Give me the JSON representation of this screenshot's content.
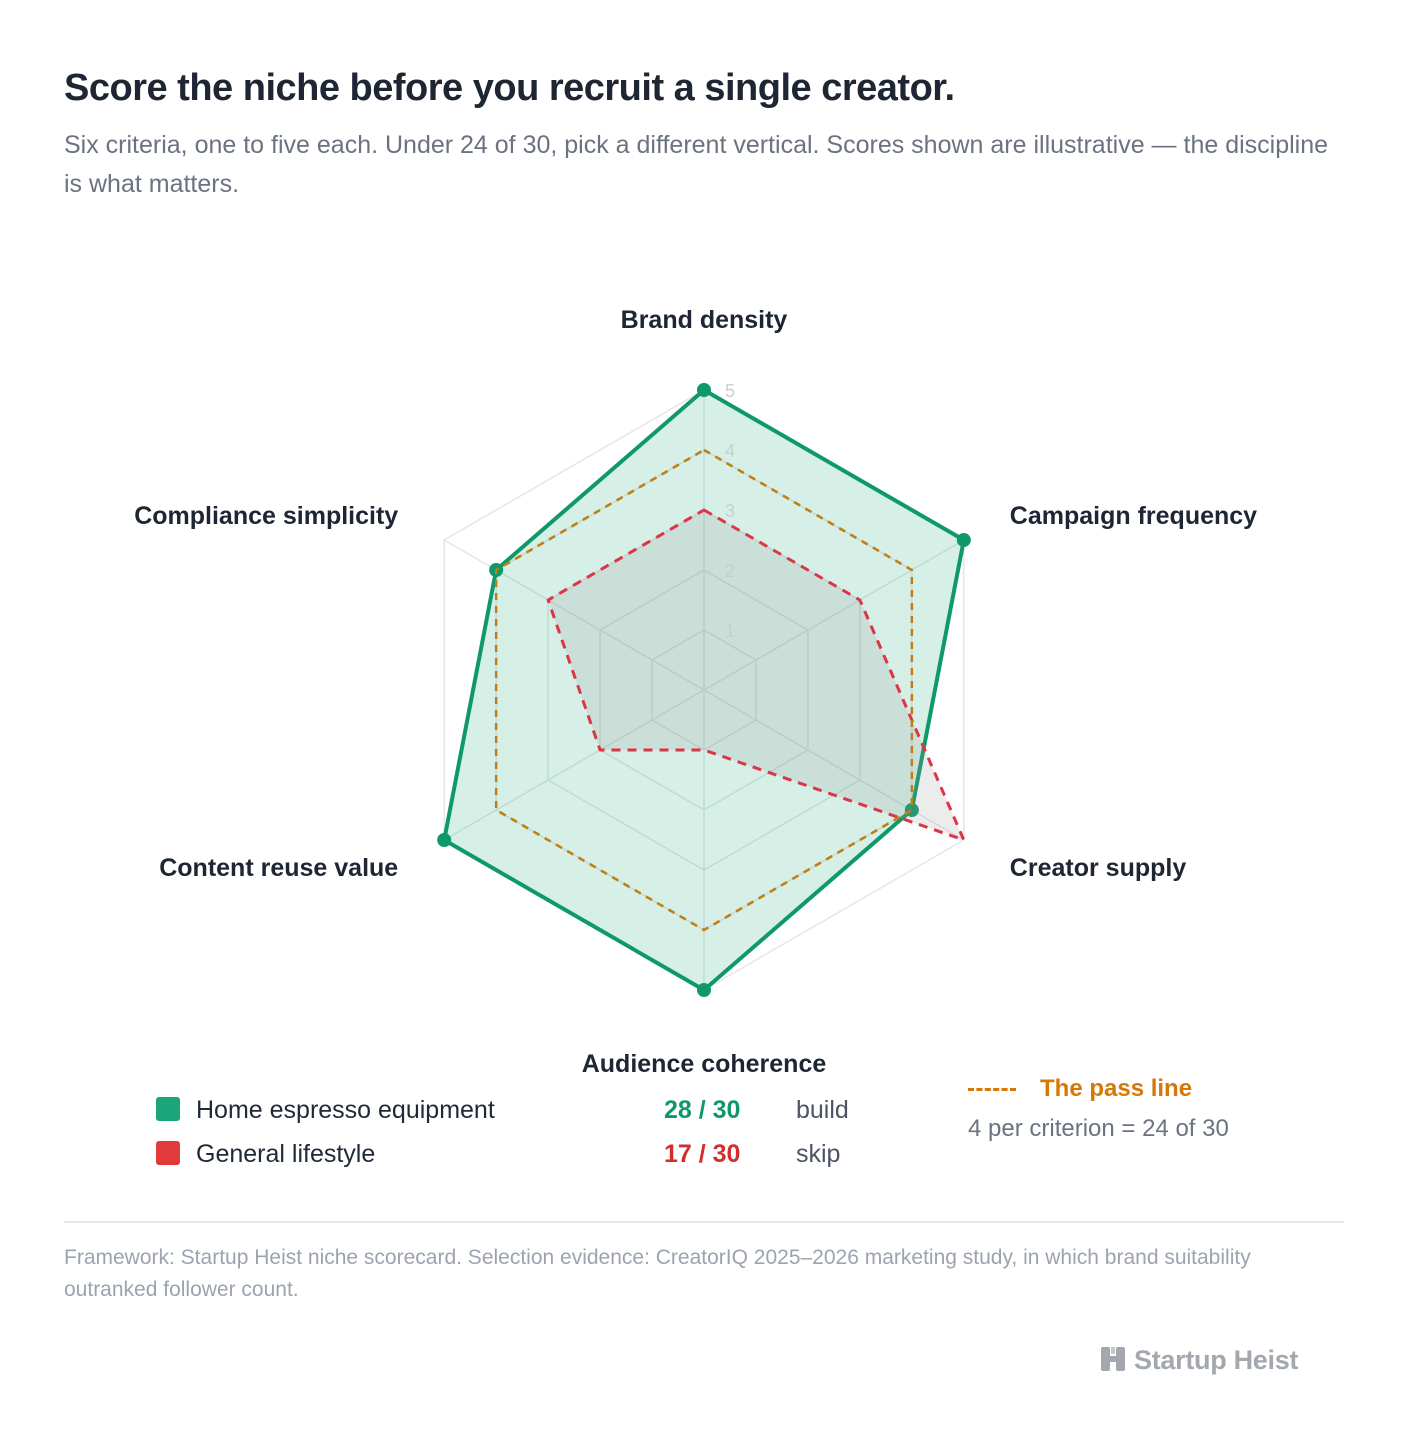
{
  "header": {
    "title": "Score the niche before you recruit a single creator.",
    "subtitle": "Six criteria, one to five each. Under 24 of 30, pick a different vertical. Scores shown are illustrative — the discipline is what matters."
  },
  "chart_data": {
    "type": "radar",
    "categories": [
      "Brand density",
      "Campaign frequency",
      "Creator supply",
      "Audience coherence",
      "Content reuse value",
      "Compliance simplicity"
    ],
    "rlim": [
      0,
      5
    ],
    "ticks": [
      "1",
      "2",
      "3",
      "4",
      "5"
    ],
    "grid": true,
    "series": [
      {
        "name": "Home espresso equipment",
        "values": [
          5,
          5,
          4,
          5,
          5,
          4
        ],
        "color": "#0f9968",
        "style": "solid"
      },
      {
        "name": "General lifestyle",
        "values": [
          3,
          3,
          5,
          1,
          2,
          3
        ],
        "color": "#dc3545",
        "style": "dashed"
      },
      {
        "name": "The pass line",
        "values": [
          4,
          4,
          4,
          4,
          4,
          4
        ],
        "color": "#c07f12",
        "style": "dashed"
      }
    ]
  },
  "legend": {
    "items": [
      {
        "name": "Home espresso equipment",
        "score": "28 / 30",
        "verdict": "build",
        "color": "#1ca57a"
      },
      {
        "name": "General lifestyle",
        "score": "17 / 30",
        "verdict": "skip",
        "color": "#e03a3a"
      }
    ],
    "pass_line": {
      "title": "The pass line",
      "note": "4 per criterion = 24 of 30"
    }
  },
  "footer": {
    "note": "Framework: Startup Heist niche scorecard. Selection evidence: CreatorIQ 2025–2026 marketing study, in which brand suitability outranked follower count.",
    "brand": "Startup Heist"
  }
}
